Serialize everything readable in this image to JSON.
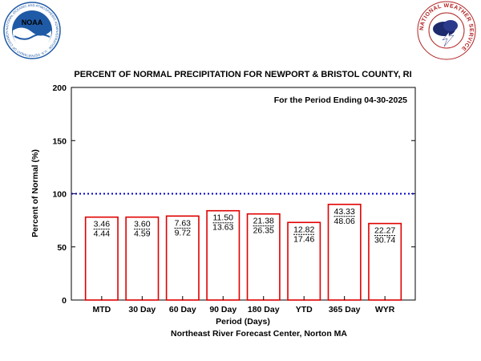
{
  "logos": {
    "left": {
      "icon": "noaa-logo-icon",
      "text": "NATIONAL OCEANIC AND ATMOSPHERIC ADMINISTRATION · U.S. DEPARTMENT OF COMMERCE",
      "center_text": "NOAA",
      "color": "#1f5aa6"
    },
    "right": {
      "icon": "nws-logo-icon",
      "text": "NATIONAL WEATHER SERVICE",
      "color": "#b22222"
    }
  },
  "chart_data": {
    "type": "bar",
    "title": "PERCENT OF NORMAL PRECIPITATION FOR NEWPORT & BRISTOL COUNTY, RI",
    "annotation": "For the Period Ending 04-30-2025",
    "xlabel": "Period (Days)",
    "source": "Northeast River Forecast Center, Norton MA",
    "ylabel": "Percent of Normal (%)",
    "ylim": [
      0,
      200
    ],
    "yticks": [
      0,
      50,
      100,
      150,
      200
    ],
    "reference_line": {
      "value": 100,
      "style": "dotted",
      "color": "#0000cc"
    },
    "bar_color": "#e00000",
    "grid": false,
    "categories": [
      "MTD",
      "30 Day",
      "60 Day",
      "90 Day",
      "180 Day",
      "YTD",
      "365 Day",
      "WYR"
    ],
    "values": [
      78,
      78,
      79,
      84,
      81,
      73,
      90,
      72
    ],
    "observed_in": [
      "3.46",
      "3.60",
      "7.63",
      "11.50",
      "21.38",
      "12.82",
      "43.33",
      "22.27"
    ],
    "normal_in": [
      "4.44",
      "4.59",
      "9.72",
      "13.63",
      "26.35",
      "17.46",
      "48.06",
      "30.74"
    ]
  }
}
